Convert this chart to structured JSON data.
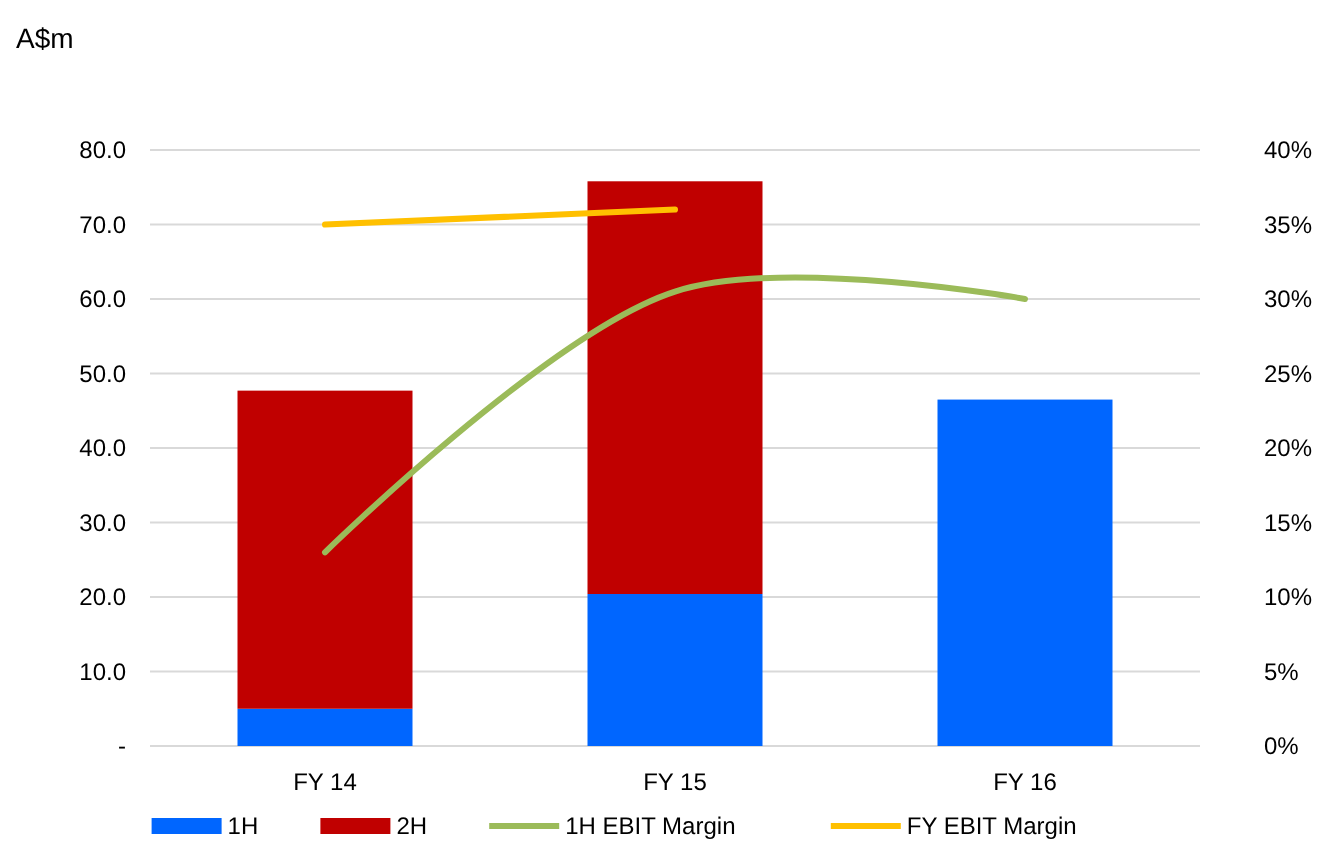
{
  "chart_data": {
    "type": "bar",
    "ylabel": "A$m",
    "categories": [
      "FY 14",
      "FY 15",
      "FY 16"
    ],
    "stacked": true,
    "series": [
      {
        "name": "1H",
        "color": "#0066ff",
        "values": [
          5.0,
          20.4,
          46.5
        ]
      },
      {
        "name": "2H",
        "color": "#c00000",
        "values": [
          42.7,
          55.4,
          null
        ]
      },
      {
        "name": "1H EBIT Margin",
        "type": "line",
        "axis": "y2",
        "color": "#9bbb59",
        "values": [
          13,
          30.5,
          30
        ]
      },
      {
        "name": "FY EBIT Margin",
        "type": "line",
        "axis": "y2",
        "color": "#ffc000",
        "values": [
          35,
          36,
          null
        ]
      }
    ],
    "ylim": [
      0,
      80
    ],
    "yticks": [
      {
        "value": 0,
        "label": "-"
      },
      {
        "value": 10,
        "label": "10.0"
      },
      {
        "value": 20,
        "label": "20.0"
      },
      {
        "value": 30,
        "label": "30.0"
      },
      {
        "value": 40,
        "label": "40.0"
      },
      {
        "value": 50,
        "label": "50.0"
      },
      {
        "value": 60,
        "label": "60.0"
      },
      {
        "value": 70,
        "label": "70.0"
      },
      {
        "value": 80,
        "label": "80.0"
      }
    ],
    "y2lim": [
      0,
      40
    ],
    "y2ticks": [
      {
        "value": 0,
        "label": "0%"
      },
      {
        "value": 5,
        "label": "5%"
      },
      {
        "value": 10,
        "label": "10%"
      },
      {
        "value": 15,
        "label": "15%"
      },
      {
        "value": 20,
        "label": "20%"
      },
      {
        "value": 25,
        "label": "25%"
      },
      {
        "value": 30,
        "label": "30%"
      },
      {
        "value": 35,
        "label": "35%"
      },
      {
        "value": 40,
        "label": "40%"
      }
    ],
    "grid": "y",
    "legend": "bottom"
  }
}
